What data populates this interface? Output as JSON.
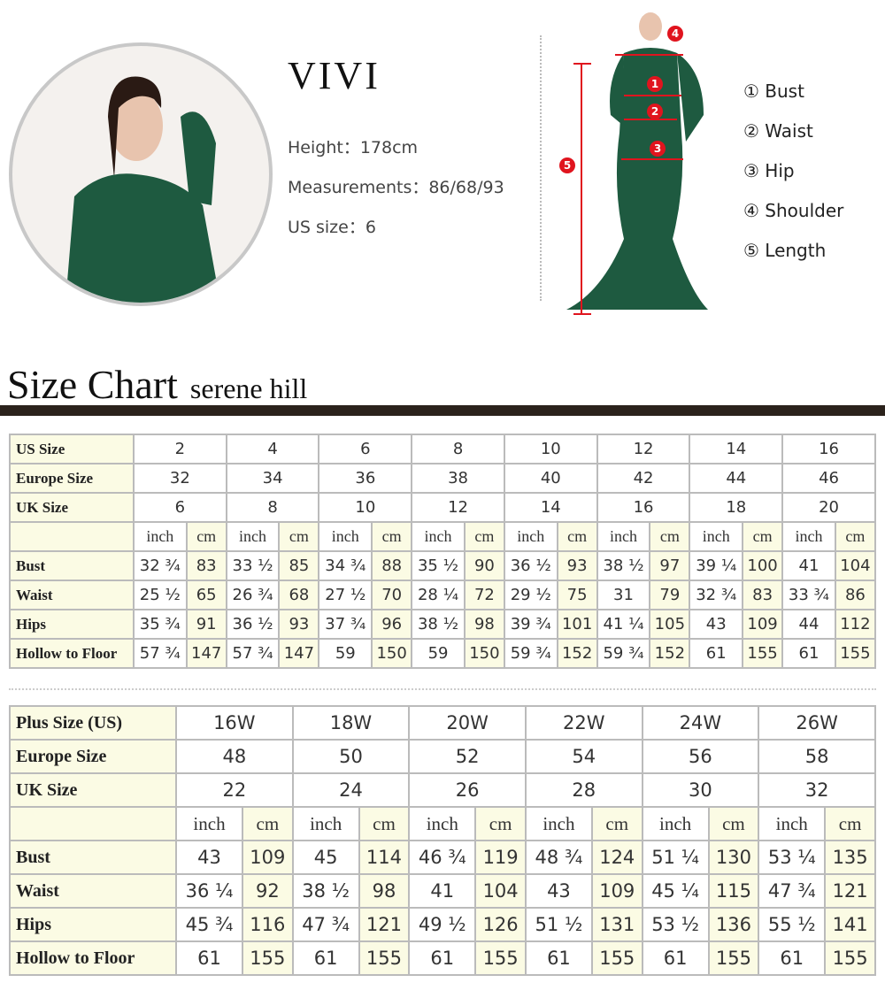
{
  "model": {
    "name": "VIVI",
    "height_label": "Height：",
    "height": "178cm",
    "measurements_label": "Measurements：",
    "measurements": "86/68/93",
    "us_size_label": "US size：",
    "us_size": "6"
  },
  "measure_legend": [
    "① Bust",
    "② Waist",
    "③ Hip",
    "④ Shoulder",
    "⑤ Length"
  ],
  "markers": [
    "1",
    "2",
    "3",
    "4",
    "5"
  ],
  "colors": {
    "dress": "#1e5a40",
    "marker": "#e0141e",
    "accent_bar": "#2b221c",
    "cell_highlight": "#fbfbe4"
  },
  "title": {
    "main": "Size Chart",
    "brand": "serene hill"
  },
  "standard": {
    "header_rows": [
      {
        "label": "US Size",
        "values": [
          "2",
          "4",
          "6",
          "8",
          "10",
          "12",
          "14",
          "16"
        ]
      },
      {
        "label": "Europe Size",
        "values": [
          "32",
          "34",
          "36",
          "38",
          "40",
          "42",
          "44",
          "46"
        ]
      },
      {
        "label": "UK Size",
        "values": [
          "6",
          "8",
          "10",
          "12",
          "14",
          "16",
          "18",
          "20"
        ]
      }
    ],
    "units": [
      "inch",
      "cm"
    ],
    "rows": [
      {
        "label": "Bust",
        "values": [
          "32 ¾",
          "83",
          "33 ½",
          "85",
          "34 ¾",
          "88",
          "35 ½",
          "90",
          "36 ½",
          "93",
          "38 ½",
          "97",
          "39 ¼",
          "100",
          "41",
          "104"
        ]
      },
      {
        "label": "Waist",
        "values": [
          "25 ½",
          "65",
          "26 ¾",
          "68",
          "27 ½",
          "70",
          "28 ¼",
          "72",
          "29 ½",
          "75",
          "31",
          "79",
          "32 ¾",
          "83",
          "33 ¾",
          "86"
        ]
      },
      {
        "label": "Hips",
        "values": [
          "35 ¾",
          "91",
          "36 ½",
          "93",
          "37 ¾",
          "96",
          "38 ½",
          "98",
          "39 ¾",
          "101",
          "41 ¼",
          "105",
          "43",
          "109",
          "44",
          "112"
        ]
      },
      {
        "label": "Hollow to Floor",
        "values": [
          "57 ¾",
          "147",
          "57 ¾",
          "147",
          "59",
          "150",
          "59",
          "150",
          "59 ¾",
          "152",
          "59 ¾",
          "152",
          "61",
          "155",
          "61",
          "155"
        ]
      }
    ]
  },
  "plus": {
    "header_rows": [
      {
        "label": "Plus Size (US)",
        "values": [
          "16W",
          "18W",
          "20W",
          "22W",
          "24W",
          "26W"
        ]
      },
      {
        "label": "Europe Size",
        "values": [
          "48",
          "50",
          "52",
          "54",
          "56",
          "58"
        ]
      },
      {
        "label": "UK Size",
        "values": [
          "22",
          "24",
          "26",
          "28",
          "30",
          "32"
        ]
      }
    ],
    "units": [
      "inch",
      "cm"
    ],
    "rows": [
      {
        "label": "Bust",
        "values": [
          "43",
          "109",
          "45",
          "114",
          "46 ¾",
          "119",
          "48 ¾",
          "124",
          "51 ¼",
          "130",
          "53 ¼",
          "135"
        ]
      },
      {
        "label": "Waist",
        "values": [
          "36 ¼",
          "92",
          "38 ½",
          "98",
          "41",
          "104",
          "43",
          "109",
          "45 ¼",
          "115",
          "47 ¾",
          "121"
        ]
      },
      {
        "label": "Hips",
        "values": [
          "45 ¾",
          "116",
          "47 ¾",
          "121",
          "49 ½",
          "126",
          "51 ½",
          "131",
          "53 ½",
          "136",
          "55 ½",
          "141"
        ]
      },
      {
        "label": "Hollow to Floor",
        "values": [
          "61",
          "155",
          "61",
          "155",
          "61",
          "155",
          "61",
          "155",
          "61",
          "155",
          "61",
          "155"
        ]
      }
    ]
  }
}
